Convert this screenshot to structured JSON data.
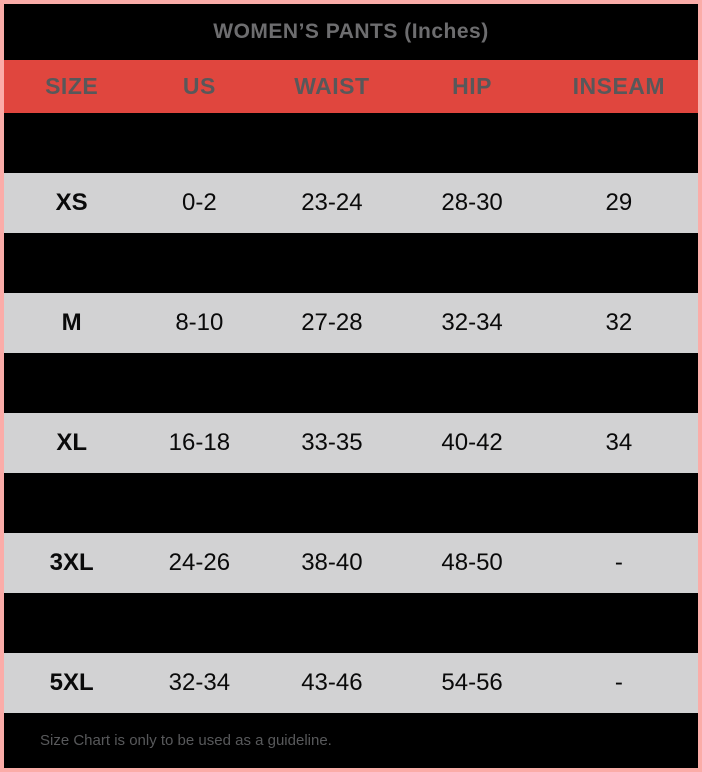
{
  "title": "WOMEN’S PANTS (Inches)",
  "table": {
    "columns": {
      "size": "SIZE",
      "us": "US",
      "waist": "WAIST",
      "hip": "HIP",
      "inseam": "INSEAM"
    },
    "rows": [
      {
        "variant": "dark",
        "size": "",
        "us": "",
        "waist": "",
        "hip": "",
        "inseam": ""
      },
      {
        "variant": "light",
        "size": "XS",
        "us": "0-2",
        "waist": "23-24",
        "hip": "28-30",
        "inseam": "29"
      },
      {
        "variant": "dark",
        "size": "",
        "us": "",
        "waist": "",
        "hip": "",
        "inseam": ""
      },
      {
        "variant": "light",
        "size": "M",
        "us": "8-10",
        "waist": "27-28",
        "hip": "32-34",
        "inseam": "32"
      },
      {
        "variant": "dark",
        "size": "",
        "us": "",
        "waist": "",
        "hip": "",
        "inseam": ""
      },
      {
        "variant": "light",
        "size": "XL",
        "us": "16-18",
        "waist": "33-35",
        "hip": "40-42",
        "inseam": "34"
      },
      {
        "variant": "dark",
        "size": "",
        "us": "",
        "waist": "",
        "hip": "",
        "inseam": ""
      },
      {
        "variant": "light",
        "size": "3XL",
        "us": "24-26",
        "waist": "38-40",
        "hip": "48-50",
        "inseam": "-"
      },
      {
        "variant": "dark",
        "size": "",
        "us": "",
        "waist": "",
        "hip": "",
        "inseam": ""
      },
      {
        "variant": "light",
        "size": "5XL",
        "us": "32-34",
        "waist": "43-46",
        "hip": "54-56",
        "inseam": "-"
      }
    ]
  },
  "footer": {
    "note": "Size Chart is only to be used as a guideline."
  },
  "colors": {
    "border_pink": "#fbaca8",
    "header_red": "#e0463e",
    "row_gray": "#d2d2d3",
    "title_text_gray": "#6d6d6f",
    "header_text_gray": "#58585a",
    "footer_text_gray": "#58595b",
    "background_black": "#000000"
  }
}
